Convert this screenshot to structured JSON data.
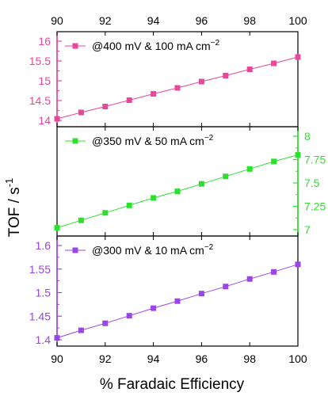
{
  "chart_data": {
    "type": "line",
    "layout": "stacked-panels-shared-x",
    "xlabel": "% Faradaic Efficiency",
    "ylabel": "TOF / s",
    "ylabel_superscript": "-1",
    "xlim": [
      90,
      100
    ],
    "x_ticks": [
      "90",
      "92",
      "94",
      "96",
      "98",
      "100"
    ],
    "x_ticks_top": [
      "90",
      "92",
      "94",
      "96",
      "98",
      "100"
    ],
    "x": [
      90,
      91,
      92,
      93,
      94,
      95,
      96,
      97,
      98,
      99,
      100
    ],
    "series": [
      {
        "name": "@400 mV & 100 mA cm",
        "name_superscript": "−2",
        "color": "#e8489a",
        "marker": "square",
        "y_axis_side": "left",
        "ylim": [
          14,
          16
        ],
        "y_ticks": [
          "14",
          "14.5",
          "15",
          "15.5",
          "16"
        ],
        "values": [
          14.04,
          14.2,
          14.35,
          14.51,
          14.67,
          14.82,
          14.98,
          15.13,
          15.29,
          15.44,
          15.6
        ]
      },
      {
        "name": "@350 mV & 50 mA cm",
        "name_superscript": "−2",
        "color": "#2ee02e",
        "marker": "square",
        "y_axis_side": "right",
        "ylim": [
          7,
          8
        ],
        "y_ticks": [
          "7",
          "7.25",
          "7.5",
          "7.75",
          "8"
        ],
        "values": [
          7.02,
          7.1,
          7.18,
          7.26,
          7.34,
          7.41,
          7.49,
          7.57,
          7.65,
          7.73,
          7.8
        ]
      },
      {
        "name": "@300 mV & 10 mA cm",
        "name_superscript": "−2",
        "color": "#9b45e6",
        "marker": "square",
        "y_axis_side": "left",
        "ylim": [
          1.4,
          1.6
        ],
        "y_ticks": [
          "1.4",
          "1.45",
          "1.5",
          "1.55",
          "1.6"
        ],
        "values": [
          1.404,
          1.42,
          1.435,
          1.451,
          1.467,
          1.482,
          1.498,
          1.513,
          1.529,
          1.544,
          1.56
        ]
      }
    ],
    "grid": false,
    "legend": "top-left of each panel"
  }
}
